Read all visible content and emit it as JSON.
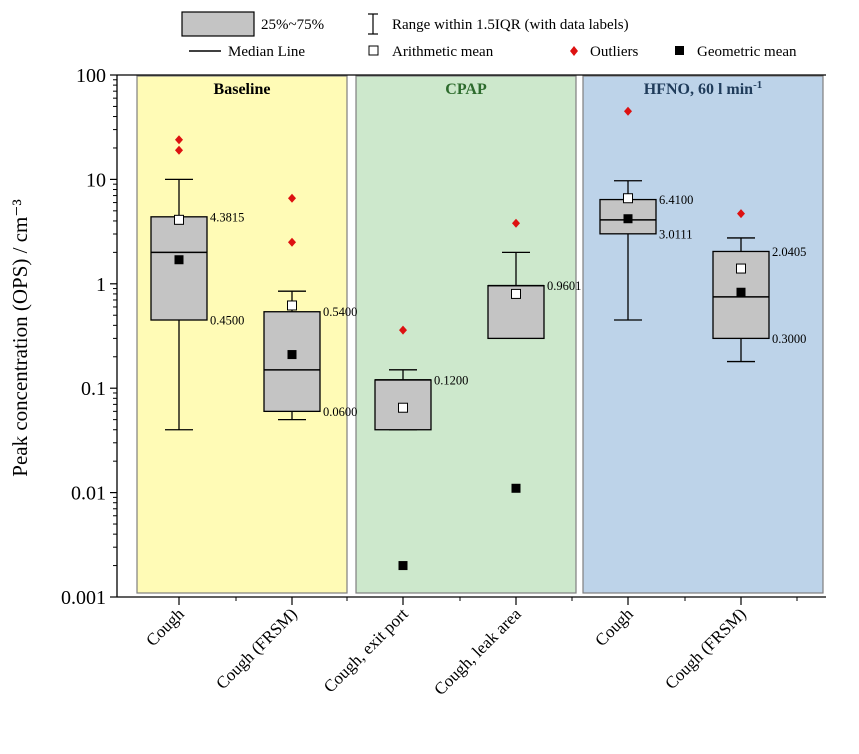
{
  "legend": {
    "box_label": "25%~75%",
    "whisker_label": "Range within 1.5IQR (with data labels)",
    "median_label": "Median Line",
    "mean_label": "Arithmetic mean",
    "outlier_label": "Outliers",
    "geo_mean_label": "Geometric mean"
  },
  "chart_data": {
    "type": "box",
    "ylabel": "Peak concentration (OPS) / cm⁻³",
    "yscale": "log",
    "ylim": [
      0.001,
      100
    ],
    "yticks": [
      {
        "value": 100,
        "label": "100"
      },
      {
        "value": 10,
        "label": "10"
      },
      {
        "value": 1,
        "label": "1"
      },
      {
        "value": 0.1,
        "label": "0.1"
      },
      {
        "value": 0.01,
        "label": "0.01"
      },
      {
        "value": 0.001,
        "label": "0.001"
      }
    ],
    "colors": {
      "box_fill": "#c4c4c4",
      "outlier": "#dd1111",
      "panel_baseline": "#fffbb6",
      "panel_cpap": "#cde8cc",
      "panel_hfno": "#bdd3e9",
      "title_baseline": "#000000",
      "title_cpap": "#2d6b2d",
      "title_hfno": "#1f3b5a"
    },
    "panels": [
      {
        "title": "Baseline",
        "title_sup": "",
        "categories": [
          0,
          1
        ]
      },
      {
        "title": "CPAP",
        "title_sup": "",
        "categories": [
          2,
          3
        ]
      },
      {
        "title": "HFNO, 60 l min",
        "title_sup": "-1",
        "categories": [
          4,
          5
        ]
      }
    ],
    "categories": [
      "Cough",
      "Cough (FRSM)",
      "Cough, exit port",
      "Cough, leak area",
      "Cough",
      "Cough (FRSM)"
    ],
    "boxes": [
      {
        "q1": 0.45,
        "median": 2.0,
        "q3": 4.3815,
        "whisker_low": 0.04,
        "whisker_high": 10.0,
        "mean": 4.1,
        "geo_mean": 1.7,
        "outliers": [
          19,
          24
        ],
        "label_q3": "4.3815",
        "label_q1": "0.4500"
      },
      {
        "q1": 0.06,
        "median": 0.15,
        "q3": 0.54,
        "whisker_low": 0.05,
        "whisker_high": 0.85,
        "mean": 0.62,
        "geo_mean": 0.21,
        "outliers": [
          2.5,
          6.6
        ],
        "label_q3": "0.5400",
        "label_q1": "0.0600"
      },
      {
        "q1": 0.04,
        "median": 0.12,
        "q3": 0.12,
        "whisker_low": 0.04,
        "whisker_high": 0.15,
        "mean": 0.065,
        "geo_mean": 0.002,
        "outliers": [
          0.36
        ],
        "label_q3": "0.1200",
        "label_q1": ""
      },
      {
        "q1": 0.3,
        "median": 0.96,
        "q3": 0.9601,
        "whisker_low": 0.3,
        "whisker_high": 2.0,
        "mean": 0.8,
        "geo_mean": 0.011,
        "outliers": [
          3.8
        ],
        "label_q3": "0.9601",
        "label_q1": ""
      },
      {
        "q1": 3.0111,
        "median": 4.1,
        "q3": 6.41,
        "whisker_low": 0.45,
        "whisker_high": 9.7,
        "mean": 6.6,
        "geo_mean": 4.2,
        "outliers": [
          45
        ],
        "label_q3": "6.4100",
        "label_q1": "3.0111"
      },
      {
        "q1": 0.3,
        "median": 0.75,
        "q3": 2.0405,
        "whisker_low": 0.18,
        "whisker_high": 2.75,
        "mean": 1.4,
        "geo_mean": 0.83,
        "outliers": [
          4.7
        ],
        "label_q3": "2.0405",
        "label_q1": "0.3000"
      }
    ]
  }
}
